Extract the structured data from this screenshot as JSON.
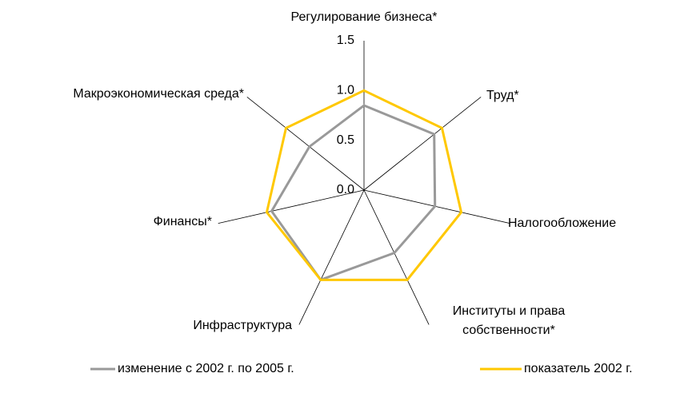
{
  "chart_data": {
    "type": "radar",
    "categories": [
      "Регулирование бизнеса*",
      "Труд*",
      "Налогообложение",
      "Институты и права собственности*",
      "Инфраструктура",
      "Финансы*",
      "Макроэкономическая среда*"
    ],
    "series": [
      {
        "name": "изменение с 2002 г. по 2005 г.",
        "color": "#999999",
        "values": [
          0.85,
          0.9,
          0.73,
          0.7,
          1.0,
          0.95,
          0.7
        ]
      },
      {
        "name": "показатель 2002 г.",
        "color": "#ffc800",
        "values": [
          1.0,
          1.0,
          1.0,
          1.0,
          1.0,
          1.0,
          1.0
        ]
      }
    ],
    "ylim": [
      0,
      1.5
    ],
    "yticks": [
      {
        "value": 0,
        "label": "0.0"
      },
      0.5,
      {
        "value": 1,
        "label": "1.0"
      },
      1.5
    ]
  }
}
